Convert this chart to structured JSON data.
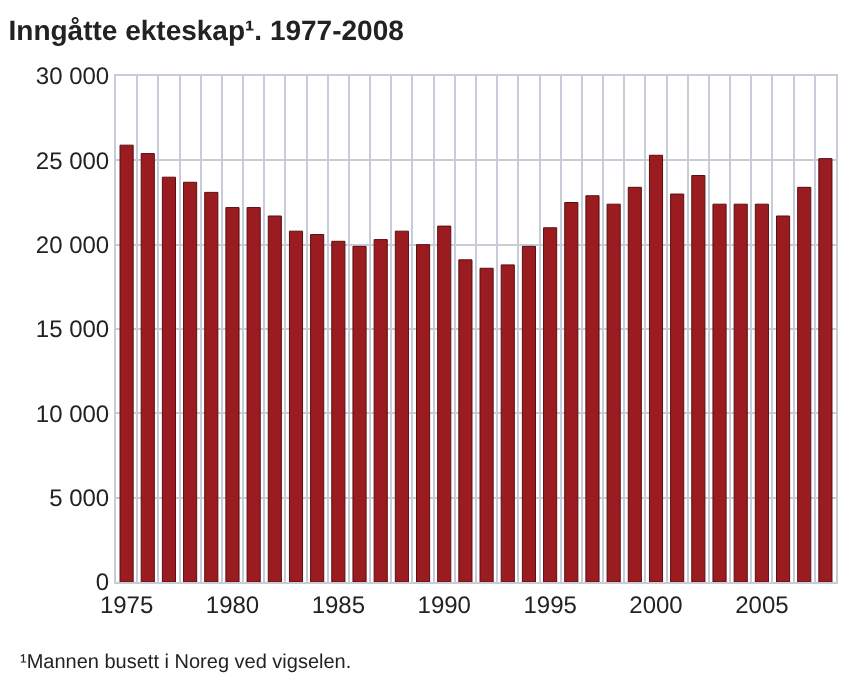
{
  "chart_data": {
    "type": "bar",
    "title": "Inngåtte ekteskap¹. 1977-2008",
    "x": [
      1975,
      1976,
      1977,
      1978,
      1979,
      1980,
      1981,
      1982,
      1983,
      1984,
      1985,
      1986,
      1987,
      1988,
      1989,
      1990,
      1991,
      1992,
      1993,
      1994,
      1995,
      1996,
      1997,
      1998,
      1999,
      2000,
      2001,
      2002,
      2003,
      2004,
      2005,
      2006,
      2007,
      2008
    ],
    "values": [
      25900,
      25400,
      24000,
      23700,
      23100,
      22200,
      22200,
      21700,
      20800,
      20600,
      20200,
      19900,
      20300,
      20800,
      20000,
      21100,
      19100,
      18600,
      18800,
      19900,
      21000,
      22500,
      22900,
      22400,
      23400,
      25300,
      23000,
      24100,
      22400,
      22400,
      22400,
      21700,
      23400,
      25100
    ],
    "color": "#9b1c20",
    "xlim": [
      1974.5,
      2008.5
    ],
    "xticks": [
      1975,
      1980,
      1985,
      1990,
      1995,
      2000,
      2005
    ],
    "ylim": [
      0,
      30000
    ],
    "yticks": [
      {
        "value": 0,
        "label": "0"
      },
      {
        "value": 5000,
        "label": "5 000"
      },
      {
        "value": 10000,
        "label": "10 000"
      },
      {
        "value": 15000,
        "label": "15 000"
      },
      {
        "value": 20000,
        "label": "20 000"
      },
      {
        "value": 25000,
        "label": "25 000"
      },
      {
        "value": 30000,
        "label": "30 000"
      }
    ],
    "grid": true,
    "annotations": [
      "¹Mannen busett i Noreg ved vigselen."
    ]
  }
}
